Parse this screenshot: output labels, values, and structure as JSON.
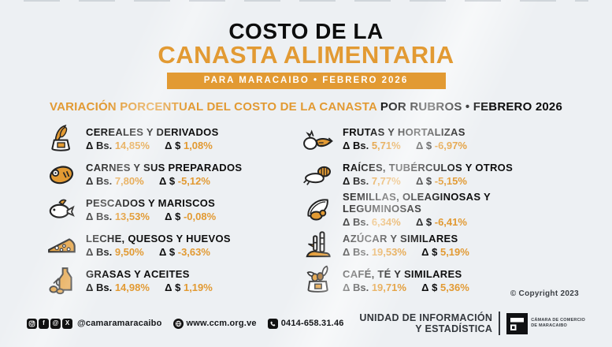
{
  "colors": {
    "accent": "#E29A33",
    "ink": "#0d0d0d"
  },
  "header": {
    "title_line1": "COSTO DE LA",
    "title_line2": "CANASTA ALIMENTARIA",
    "banner": "PARA MARACAIBO •  FEBRERO 2026"
  },
  "subtitle": {
    "orange_part": "VARIACIÓN PORCENTUAL DEL COSTO DE LA CANASTA",
    "dark_part": " POR RUBROS •  FEBRERO 2026"
  },
  "items_left": [
    {
      "icon": "grain-sack-icon",
      "title": "CEREALES Y DERIVADOS",
      "bs_label": "Δ Bs.",
      "bs_value": "14,85%",
      "usd_label": "Δ $",
      "usd_value": "1,08%"
    },
    {
      "icon": "steak-icon",
      "title": "CARNES Y SUS PREPARADOS",
      "bs_label": "Δ Bs.",
      "bs_value": "7,80%",
      "usd_label": "Δ $",
      "usd_value": "-5,12%"
    },
    {
      "icon": "fish-icon",
      "title": "PESCADOS Y MARISCOS",
      "bs_label": "Δ Bs.",
      "bs_value": "13,53%",
      "usd_label": "Δ $",
      "usd_value": "-0,08%"
    },
    {
      "icon": "cheese-icon",
      "title": "LECHE, QUESOS Y HUEVOS",
      "bs_label": "Δ Bs.",
      "bs_value": "9,50%",
      "usd_label": "Δ $",
      "usd_value": "-3,63%"
    },
    {
      "icon": "oil-bottle-icon",
      "title": "GRASAS Y ACEITES",
      "bs_label": "Δ Bs.",
      "bs_value": "14,98%",
      "usd_label": "Δ $",
      "usd_value": "1,19%"
    }
  ],
  "items_right": [
    {
      "icon": "fruits-icon",
      "title": "FRUTAS Y HORTALIZAS",
      "bs_label": "Δ Bs.",
      "bs_value": "5,71%",
      "usd_label": "Δ $",
      "usd_value": "-6,97%"
    },
    {
      "icon": "roots-icon",
      "title": "RAÍCES, TUBÉRCULOS Y OTROS",
      "bs_label": "Δ Bs.",
      "bs_value": "7,77%",
      "usd_label": "Δ $",
      "usd_value": "-5,15%"
    },
    {
      "icon": "seeds-icon",
      "title": "SEMILLAS, OLEAGINOSAS Y LEGUMINOSAS",
      "bs_label": "Δ Bs.",
      "bs_value": "6,34%",
      "usd_label": "Δ $",
      "usd_value": "-6,41%"
    },
    {
      "icon": "sugar-cane-icon",
      "title": "AZÚCAR Y SIMILARES",
      "bs_label": "Δ Bs.",
      "bs_value": "19,53%",
      "usd_label": "Δ $",
      "usd_value": "5,19%"
    },
    {
      "icon": "coffee-sack-icon",
      "title": "CAFÉ, TÉ Y SIMILARES",
      "bs_label": "Δ Bs.",
      "bs_value": "19,71%",
      "usd_label": "Δ $",
      "usd_value": "5,36%"
    }
  ],
  "copyright": "© Copyright 2023",
  "footer": {
    "social_handle": "@camaramaracaibo",
    "website": "www.ccm.org.ve",
    "phone": "0414-658.31.46",
    "facebook_glyph": "f",
    "x_glyph": "X",
    "threads_glyph": "@",
    "unit_line1": "UNIDAD DE INFORMACIÓN",
    "unit_line2": "Y ESTADÍSTICA",
    "org_line1": "CÁMARA DE COMERCIO",
    "org_line2": "DE MARACAIBO"
  }
}
